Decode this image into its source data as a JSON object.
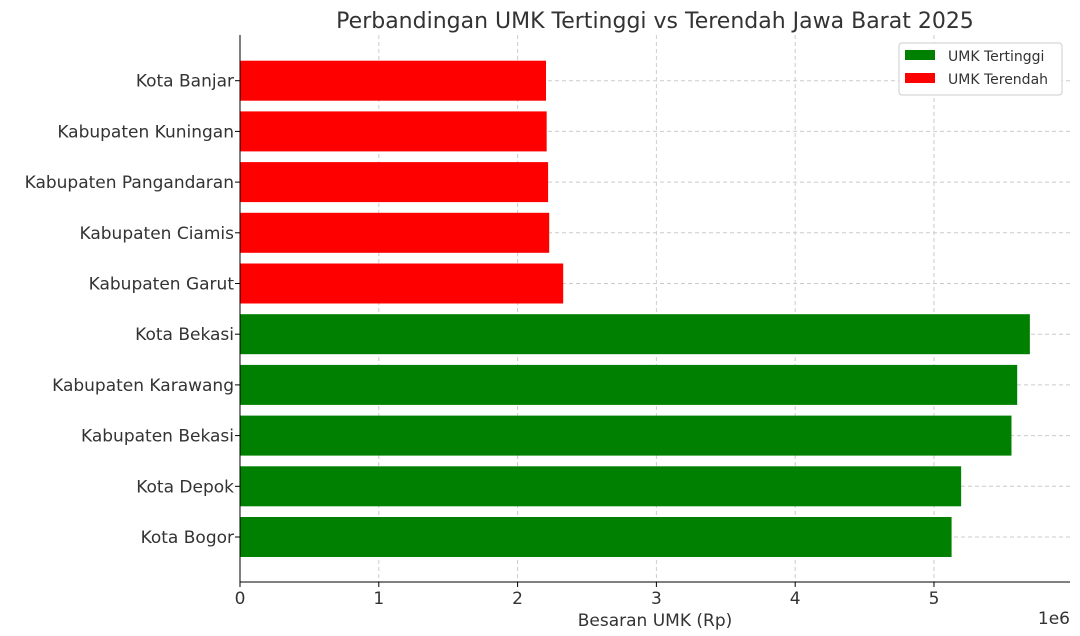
{
  "chart_data": {
    "type": "bar",
    "orientation": "horizontal",
    "title": "Perbandingan UMK Tertinggi vs Terendah Jawa Barat 2025",
    "xlabel": "Besaran UMK (Rp)",
    "ylabel": "",
    "x_offset_label": "1e6",
    "xlim": [
      0,
      5980000
    ],
    "xticks": [
      0,
      1,
      2,
      3,
      4,
      5
    ],
    "grid": true,
    "legend_position": "top-right",
    "legend": [
      {
        "name": "UMK Tertinggi",
        "color": "#008000"
      },
      {
        "name": "UMK Terendah",
        "color": "#ff0000"
      }
    ],
    "categories": [
      "Kota Bogor",
      "Kota Depok",
      "Kabupaten Bekasi",
      "Kabupaten Karawang",
      "Kota Bekasi",
      "Kabupaten Garut",
      "Kabupaten Ciamis",
      "Kabupaten Pangandaran",
      "Kabupaten Kuningan",
      "Kota Banjar"
    ],
    "values": [
      5126897,
      5195721,
      5558515,
      5599593,
      5690752,
      2328620,
      2227775,
      2219806,
      2209519,
      2204754
    ],
    "series_of": [
      "UMK Tertinggi",
      "UMK Tertinggi",
      "UMK Tertinggi",
      "UMK Tertinggi",
      "UMK Tertinggi",
      "UMK Terendah",
      "UMK Terendah",
      "UMK Terendah",
      "UMK Terendah",
      "UMK Terendah"
    ]
  }
}
